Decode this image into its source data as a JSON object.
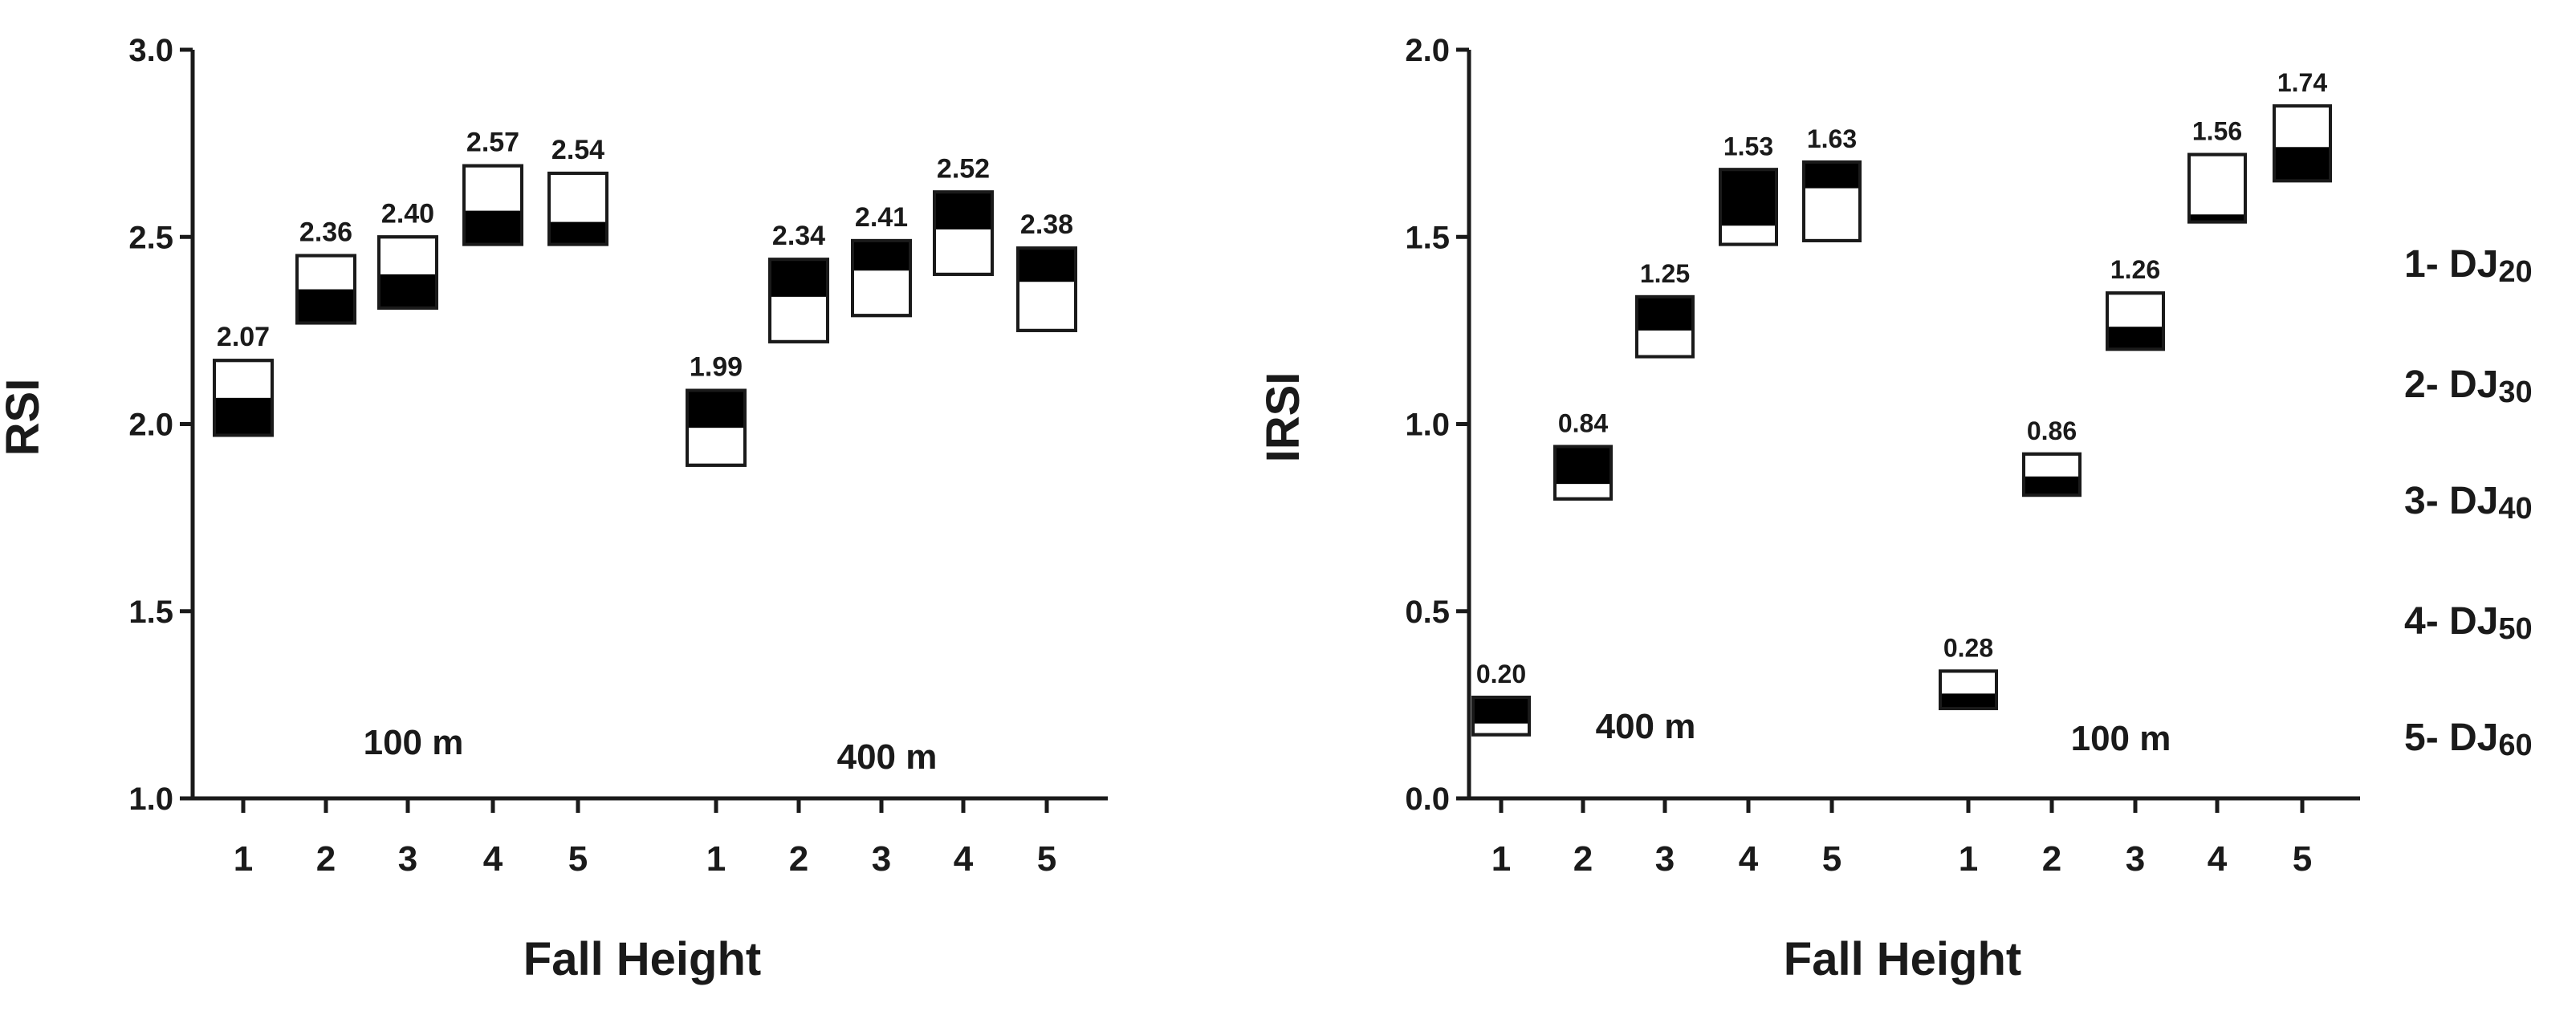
{
  "chart_data": [
    {
      "type": "box",
      "ylabel": "RSI",
      "xlabel": "Fall Height",
      "ylim": [
        1.0,
        3.0
      ],
      "yticks": [
        "1.0",
        "1.5",
        "2.0",
        "2.5",
        "3.0"
      ],
      "groups": [
        {
          "label": "100 m",
          "categories": [
            "1",
            "2",
            "3",
            "4",
            "5"
          ],
          "values": [
            2.07,
            2.36,
            2.4,
            2.57,
            2.54
          ],
          "value_labels": [
            "2.07",
            "2.36",
            "2.40",
            "2.57",
            "2.54"
          ],
          "upper": [
            2.17,
            2.45,
            2.5,
            2.69,
            2.67
          ],
          "lower": [
            1.97,
            2.27,
            2.31,
            2.48,
            2.48
          ],
          "dark_on_top": [
            false,
            false,
            false,
            false,
            false
          ]
        },
        {
          "label": "400 m",
          "categories": [
            "1",
            "2",
            "3",
            "4",
            "5"
          ],
          "values": [
            1.99,
            2.34,
            2.41,
            2.52,
            2.38
          ],
          "value_labels": [
            "1.99",
            "2.34",
            "2.41",
            "2.52",
            "2.38"
          ],
          "upper": [
            2.09,
            2.44,
            2.49,
            2.62,
            2.47
          ],
          "lower": [
            1.89,
            2.22,
            2.29,
            2.4,
            2.25
          ],
          "dark_on_top": [
            true,
            true,
            true,
            true,
            true
          ]
        }
      ]
    },
    {
      "type": "box",
      "ylabel": "IRSI",
      "xlabel": "Fall Height",
      "ylim": [
        0.0,
        2.0
      ],
      "yticks": [
        "0.0",
        "0.5",
        "1.0",
        "1.5",
        "2.0"
      ],
      "groups": [
        {
          "label": "400 m",
          "categories": [
            "1",
            "2",
            "3",
            "4",
            "5"
          ],
          "values": [
            0.2,
            0.84,
            1.25,
            1.53,
            1.63
          ],
          "value_labels": [
            "0.20",
            "0.84",
            "1.25",
            "1.53",
            "1.63"
          ],
          "upper": [
            0.27,
            0.94,
            1.34,
            1.68,
            1.7
          ],
          "lower": [
            0.17,
            0.8,
            1.18,
            1.48,
            1.49
          ],
          "dark_on_top": [
            true,
            true,
            true,
            true,
            true
          ]
        },
        {
          "label": "100 m",
          "categories": [
            "1",
            "2",
            "3",
            "4",
            "5"
          ],
          "values": [
            0.28,
            0.86,
            1.26,
            1.56,
            1.74
          ],
          "value_labels": [
            "0.28",
            "0.86",
            "1.26",
            "1.56",
            "1.74"
          ],
          "upper": [
            0.34,
            0.92,
            1.35,
            1.72,
            1.85
          ],
          "lower": [
            0.24,
            0.81,
            1.2,
            1.54,
            1.65
          ],
          "dark_on_top": [
            false,
            false,
            false,
            false,
            false
          ]
        }
      ]
    }
  ],
  "legend": [
    {
      "num": "1- DJ",
      "sub": "20"
    },
    {
      "num": "2- DJ",
      "sub": "30"
    },
    {
      "num": "3- DJ",
      "sub": "40"
    },
    {
      "num": "4- DJ",
      "sub": "50"
    },
    {
      "num": "5- DJ",
      "sub": "60"
    }
  ]
}
